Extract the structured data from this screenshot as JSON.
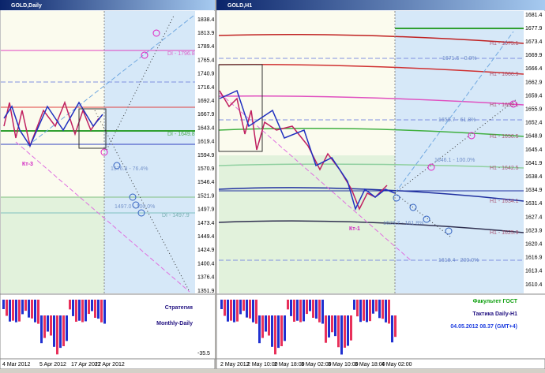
{
  "left": {
    "title": "GOLD,Daily",
    "prices": [
      "1838.4",
      "1813.9",
      "1789.4",
      "1765.4",
      "1740.9",
      "1716.4",
      "1692.4",
      "1667.9",
      "1643.4",
      "1619.4",
      "1594.9",
      "1570.9",
      "1546.4",
      "1521.9",
      "1497.9",
      "1473.4",
      "1449.4",
      "1424.9",
      "1400.4",
      "1376.4",
      "1351.9"
    ],
    "dates": [
      "4 Mar 2012",
      "5 Apr 2012",
      "17 Apr 2012",
      "27 Apr 2012"
    ],
    "indicator_label": "-35.5",
    "labels": [
      "DI - 1796.8",
      "DI - 1649.8",
      "1576.8 - 76.4%",
      "1497.0 - 100.0%",
      "DI - 1497.9"
    ],
    "marker": "Кт-3",
    "strategy": "Стратегия",
    "mode": "Monthly-Daily"
  },
  "right": {
    "title": "GOLD,H1",
    "prices": [
      "1681.4",
      "1677.9",
      "1673.4",
      "1669.9",
      "1666.4",
      "1662.9",
      "1659.4",
      "1655.9",
      "1652.4",
      "1648.9",
      "1645.4",
      "1641.9",
      "1638.4",
      "1634.9",
      "1631.4",
      "1627.4",
      "1623.9",
      "1620.4",
      "1616.9",
      "1613.4",
      "1610.4"
    ],
    "dates": [
      "2 May 2012",
      "2 May 10:00",
      "2 May 18:00",
      "3 May 02:00",
      "3 May 10:00",
      "3 May 18:00",
      "4 May 02:00"
    ],
    "labels": [
      "H1 - 1675.1",
      "H1 - 1666.9",
      "H1 - 1659.1",
      "H1 - 1650.5",
      "H1 - 1642.5",
      "H1 - 1634.1",
      "H1 - 1625.9",
      "1671.5 - 0.0%",
      "1658.7 - 61.8%",
      "1646.1 - 100.0%",
      "1628.7 - 161.8%",
      "1618.4 - 200.0%"
    ],
    "marker": "Кт-1",
    "faculty": "Факультет ГОСТ",
    "tactic": "Тактика Daily-H1",
    "timestamp": "04.05.2012 08.37 (GMT+4)"
  }
}
